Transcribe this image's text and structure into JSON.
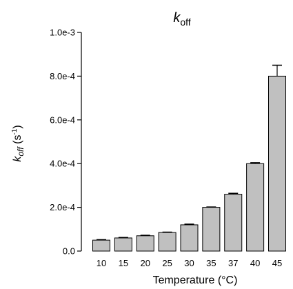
{
  "chart_data": {
    "type": "bar",
    "title_main": "k",
    "title_sub": "off",
    "xlabel": "Temperature (°C)",
    "ylabel_main": "k",
    "ylabel_sub": "off",
    "ylabel_unit_pre": " (s",
    "ylabel_unit_sup": "-1",
    "ylabel_unit_post": ")",
    "categories": [
      "10",
      "15",
      "20",
      "25",
      "30",
      "35",
      "37",
      "40",
      "45"
    ],
    "values": [
      5e-05,
      6e-05,
      7e-05,
      8.5e-05,
      0.00012,
      0.0002,
      0.00026,
      0.0004,
      0.0008
    ],
    "errors": [
      2e-06,
      2e-06,
      2e-06,
      1.5e-06,
      3e-06,
      1.5e-06,
      4e-06,
      4e-06,
      5e-05
    ],
    "ylim": [
      0,
      0.001
    ],
    "yticks": [
      0,
      0.0002,
      0.0004,
      0.0006,
      0.0008,
      0.001
    ],
    "ytick_labels": [
      "0.0",
      "2.0e-4",
      "4.0e-4",
      "6.0e-4",
      "8.0e-4",
      "1.0e-3"
    ],
    "bar_color": "#c0c0c0",
    "bar_edge_color": "#000000",
    "grid": false,
    "legend": "none"
  }
}
